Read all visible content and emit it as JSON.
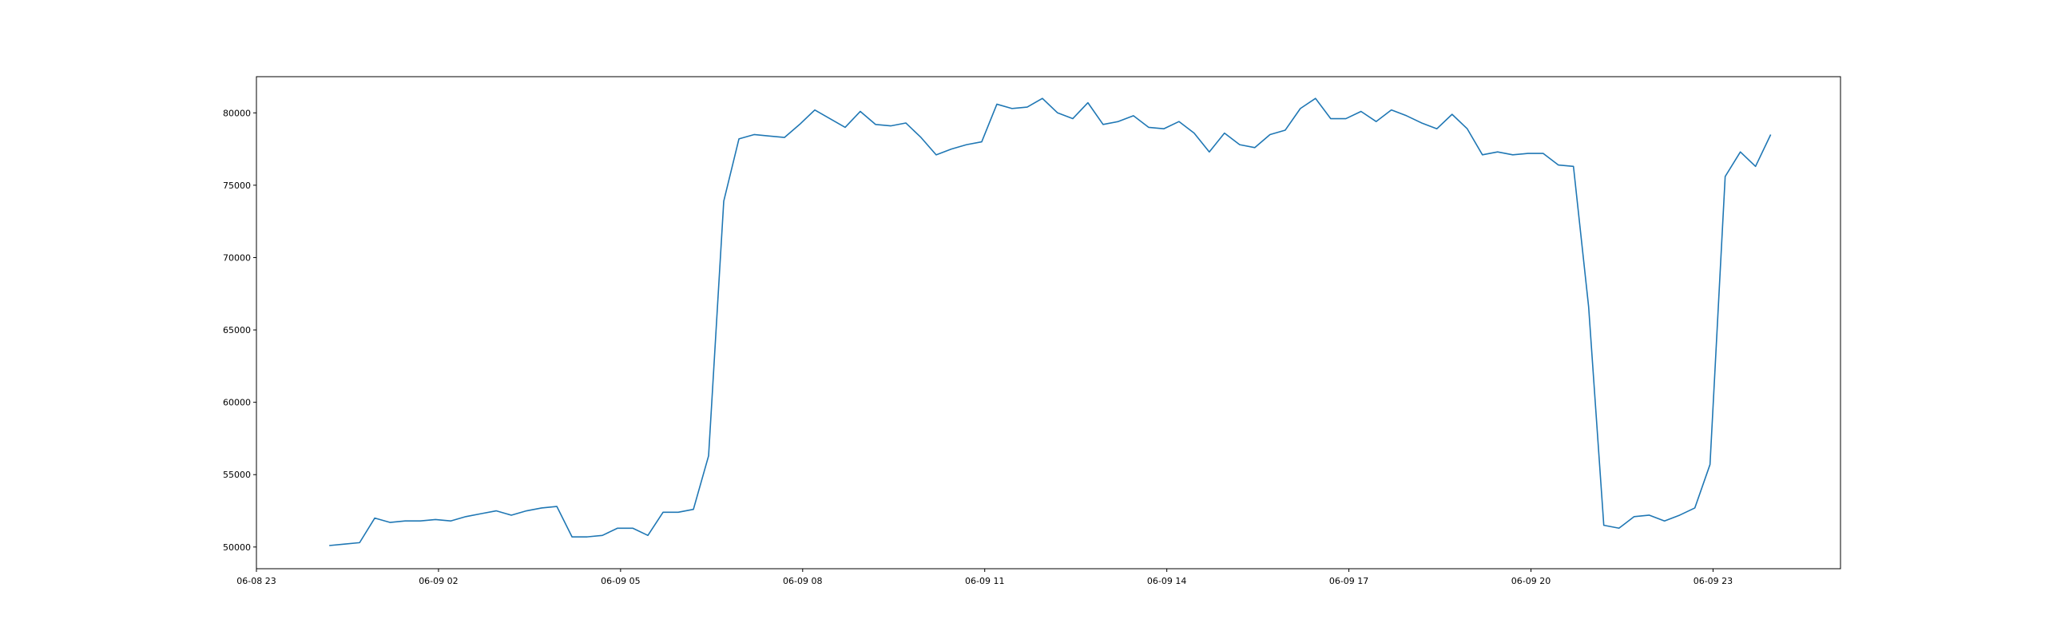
{
  "chart_data": {
    "type": "line",
    "title": "",
    "xlabel": "",
    "ylabel": "",
    "x_tick_labels": [
      "06-08 23",
      "06-09 02",
      "06-09 05",
      "06-09 08",
      "06-09 11",
      "06-09 14",
      "06-09 17",
      "06-09 20",
      "06-09 23"
    ],
    "y_tick_labels": [
      "50000",
      "55000",
      "60000",
      "65000",
      "70000",
      "75000",
      "80000"
    ],
    "y_ticks": [
      50000,
      55000,
      60000,
      65000,
      70000,
      75000,
      80000
    ],
    "xlim": [
      "2024-06-08 23:00",
      "2024-06-10 01:06"
    ],
    "ylim": [
      48500,
      82500
    ],
    "grid": false,
    "legend": "none",
    "series": [
      {
        "color": "#1f77b4",
        "x": [
          "2024-06-09 00:12",
          "2024-06-09 00:27",
          "2024-06-09 00:42",
          "2024-06-09 00:57",
          "2024-06-09 01:12",
          "2024-06-09 01:27",
          "2024-06-09 01:42",
          "2024-06-09 01:57",
          "2024-06-09 02:12",
          "2024-06-09 02:27",
          "2024-06-09 02:42",
          "2024-06-09 02:57",
          "2024-06-09 03:12",
          "2024-06-09 03:27",
          "2024-06-09 03:42",
          "2024-06-09 03:57",
          "2024-06-09 04:12",
          "2024-06-09 04:27",
          "2024-06-09 04:42",
          "2024-06-09 04:57",
          "2024-06-09 05:12",
          "2024-06-09 05:27",
          "2024-06-09 05:42",
          "2024-06-09 05:57",
          "2024-06-09 06:12",
          "2024-06-09 06:27",
          "2024-06-09 06:42",
          "2024-06-09 06:57",
          "2024-06-09 07:12",
          "2024-06-09 07:27",
          "2024-06-09 07:42",
          "2024-06-09 07:57",
          "2024-06-09 08:12",
          "2024-06-09 08:27",
          "2024-06-09 08:42",
          "2024-06-09 08:57",
          "2024-06-09 09:12",
          "2024-06-09 09:27",
          "2024-06-09 09:42",
          "2024-06-09 09:57",
          "2024-06-09 10:12",
          "2024-06-09 10:27",
          "2024-06-09 10:42",
          "2024-06-09 10:57",
          "2024-06-09 11:12",
          "2024-06-09 11:27",
          "2024-06-09 11:42",
          "2024-06-09 11:57",
          "2024-06-09 12:12",
          "2024-06-09 12:27",
          "2024-06-09 12:42",
          "2024-06-09 12:57",
          "2024-06-09 13:12",
          "2024-06-09 13:27",
          "2024-06-09 13:42",
          "2024-06-09 13:57",
          "2024-06-09 14:12",
          "2024-06-09 14:27",
          "2024-06-09 14:42",
          "2024-06-09 14:57",
          "2024-06-09 15:12",
          "2024-06-09 15:27",
          "2024-06-09 15:42",
          "2024-06-09 15:57",
          "2024-06-09 16:12",
          "2024-06-09 16:27",
          "2024-06-09 16:42",
          "2024-06-09 16:57",
          "2024-06-09 17:12",
          "2024-06-09 17:27",
          "2024-06-09 17:42",
          "2024-06-09 17:57",
          "2024-06-09 18:12",
          "2024-06-09 18:27",
          "2024-06-09 18:42",
          "2024-06-09 18:57",
          "2024-06-09 19:12",
          "2024-06-09 19:27",
          "2024-06-09 19:42",
          "2024-06-09 19:57",
          "2024-06-09 20:12",
          "2024-06-09 20:27",
          "2024-06-09 20:42",
          "2024-06-09 20:57",
          "2024-06-09 21:12",
          "2024-06-09 21:27",
          "2024-06-09 21:42",
          "2024-06-09 21:57",
          "2024-06-09 22:12",
          "2024-06-09 22:27",
          "2024-06-09 22:42",
          "2024-06-09 22:57",
          "2024-06-09 23:12",
          "2024-06-09 23:27",
          "2024-06-09 23:42",
          "2024-06-09 23:57"
        ],
        "y": [
          50100,
          50200,
          50300,
          52000,
          51700,
          51800,
          51800,
          51900,
          51800,
          52100,
          52300,
          52500,
          52200,
          52500,
          52700,
          52800,
          50700,
          50700,
          50800,
          51300,
          51300,
          50800,
          52400,
          52400,
          52600,
          56300,
          73900,
          78200,
          78500,
          78400,
          78300,
          79200,
          80200,
          79600,
          79000,
          80100,
          79200,
          79100,
          79300,
          78300,
          77100,
          77500,
          77800,
          78000,
          80600,
          80300,
          80400,
          81000,
          80000,
          79600,
          80700,
          79200,
          79400,
          79800,
          79000,
          78900,
          79400,
          78600,
          77300,
          78600,
          77800,
          77600,
          78500,
          78800,
          80300,
          81000,
          79600,
          79600,
          80100,
          79400,
          80200,
          79800,
          79300,
          78900,
          79900,
          78900,
          77100,
          77300,
          77100,
          77200,
          77200,
          76400,
          76300,
          66600,
          51500,
          51300,
          52100,
          52200,
          51800,
          52200,
          52700,
          55700,
          75600,
          77300,
          76300,
          78500
        ]
      }
    ]
  }
}
